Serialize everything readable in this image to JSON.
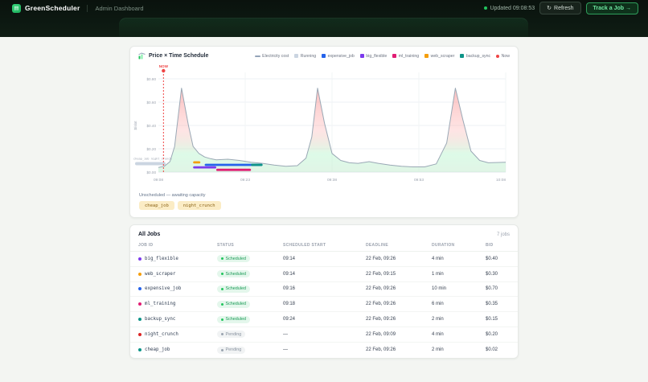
{
  "header": {
    "brand": "GreenScheduler",
    "nav_label": "Admin Dashboard",
    "updated_label": "Updated 09:08:53",
    "refresh_icon": "↻",
    "refresh_label": "Refresh",
    "track_label": "Track a Job →"
  },
  "chart_card": {
    "title": "Price × Time Schedule",
    "legend": [
      {
        "label": "Electricity cost",
        "color": "#94a3b8",
        "type": "line"
      },
      {
        "label": "Running",
        "color": "#cbd5e1",
        "type": "square"
      },
      {
        "label": "expensive_job",
        "color": "#2563eb",
        "type": "square"
      },
      {
        "label": "big_flexible",
        "color": "#7c3aed",
        "type": "square"
      },
      {
        "label": "ml_training",
        "color": "#e11d74",
        "type": "square"
      },
      {
        "label": "web_scraper",
        "color": "#f59e0b",
        "type": "square"
      },
      {
        "label": "backup_sync",
        "color": "#0d9488",
        "type": "square"
      },
      {
        "label": "Now",
        "color": "#ef4444",
        "type": "dot"
      }
    ],
    "unscheduled_label": "Unscheduled — awaiting capacity",
    "unscheduled_jobs": [
      "cheap_job",
      "night_crunch"
    ]
  },
  "chart_data": {
    "type": "area",
    "title": "Price × Time Schedule",
    "ylabel": "$/slot",
    "x_ticks": [
      "09:08",
      "09:23",
      "09:38",
      "09:53",
      "10:08"
    ],
    "x_tick_minutes": [
      0,
      15,
      30,
      45,
      60
    ],
    "y_ticks": [
      "$0.00",
      "$0.20",
      "$0.40",
      "$0.60",
      "$0.80"
    ],
    "y_tick_values": [
      0,
      0.2,
      0.4,
      0.6,
      0.8
    ],
    "ylim": [
      0,
      0.88
    ],
    "x_range_minutes": [
      0,
      60
    ],
    "grid": true,
    "legend_position": "top-right",
    "now": {
      "label": "NOW",
      "minute": 0.88,
      "color": "#ef4444"
    },
    "electricity_cost": {
      "name": "Electricity cost",
      "color": "#9aa8b5",
      "points": [
        [
          0,
          0.04
        ],
        [
          1,
          0.05
        ],
        [
          2,
          0.09
        ],
        [
          2.8,
          0.22
        ],
        [
          4,
          0.72
        ],
        [
          5.2,
          0.4
        ],
        [
          6,
          0.22
        ],
        [
          7,
          0.16
        ],
        [
          8,
          0.13
        ],
        [
          9,
          0.115
        ],
        [
          10,
          0.105
        ],
        [
          12,
          0.11
        ],
        [
          14,
          0.1
        ],
        [
          16,
          0.085
        ],
        [
          18,
          0.075
        ],
        [
          20,
          0.06
        ],
        [
          22,
          0.05
        ],
        [
          24,
          0.055
        ],
        [
          25.5,
          0.12
        ],
        [
          26.5,
          0.3
        ],
        [
          27.5,
          0.72
        ],
        [
          28.7,
          0.42
        ],
        [
          30,
          0.16
        ],
        [
          31.5,
          0.1
        ],
        [
          33,
          0.08
        ],
        [
          34.5,
          0.075
        ],
        [
          36.4,
          0.09
        ],
        [
          38,
          0.075
        ],
        [
          40,
          0.06
        ],
        [
          42,
          0.05
        ],
        [
          44,
          0.045
        ],
        [
          46,
          0.045
        ],
        [
          48,
          0.07
        ],
        [
          49.8,
          0.25
        ],
        [
          51.3,
          0.72
        ],
        [
          52.6,
          0.45
        ],
        [
          54,
          0.18
        ],
        [
          55.5,
          0.1
        ],
        [
          57,
          0.08
        ],
        [
          60,
          0.085
        ]
      ]
    },
    "scheduled_bars": [
      {
        "job": "web_scraper",
        "start_minute": 6,
        "end_minute": 7,
        "lane": 0,
        "color": "#f59e0b"
      },
      {
        "job": "expensive_job",
        "start_minute": 8,
        "end_minute": 18,
        "lane": 1,
        "color": "#2563eb"
      },
      {
        "job": "backup_sync",
        "start_minute": 16,
        "end_minute": 18,
        "lane": 1,
        "color": "#0d9488"
      },
      {
        "job": "big_flexible",
        "start_minute": 6,
        "end_minute": 10,
        "lane": 2,
        "color": "#7c3aed"
      },
      {
        "job": "ml_training",
        "start_minute": 10,
        "end_minute": 16,
        "lane": 3,
        "color": "#e11d74"
      }
    ],
    "queued_at_now": {
      "labels": [
        "cheap_job",
        "night_crunch"
      ],
      "color": "#cbd5e1"
    }
  },
  "table_card": {
    "title": "All Jobs",
    "count_label": "7 jobs",
    "columns": [
      "JOB ID",
      "STATUS",
      "SCHEDULED START",
      "DEADLINE",
      "DURATION",
      "BID"
    ],
    "rows": [
      {
        "job_id": "big_flexible",
        "dot": "#7c3aed",
        "status": "Scheduled",
        "start": "09:14",
        "deadline": "22 Feb, 09:26",
        "duration": "4 min",
        "bid": "$0.40"
      },
      {
        "job_id": "web_scraper",
        "dot": "#f59e0b",
        "status": "Scheduled",
        "start": "09:14",
        "deadline": "22 Feb, 09:15",
        "duration": "1 min",
        "bid": "$0.30"
      },
      {
        "job_id": "expensive_job",
        "dot": "#2563eb",
        "status": "Scheduled",
        "start": "09:16",
        "deadline": "22 Feb, 09:26",
        "duration": "10 min",
        "bid": "$0.70"
      },
      {
        "job_id": "ml_training",
        "dot": "#e11d74",
        "status": "Scheduled",
        "start": "09:18",
        "deadline": "22 Feb, 09:26",
        "duration": "6 min",
        "bid": "$0.35"
      },
      {
        "job_id": "backup_sync",
        "dot": "#0d9488",
        "status": "Scheduled",
        "start": "09:24",
        "deadline": "22 Feb, 09:26",
        "duration": "2 min",
        "bid": "$0.15"
      },
      {
        "job_id": "night_crunch",
        "dot": "#dc2626",
        "status": "Pending",
        "start": "—",
        "deadline": "22 Feb, 09:09",
        "duration": "4 min",
        "bid": "$0.20"
      },
      {
        "job_id": "cheap_job",
        "dot": "#0d9488",
        "status": "Pending",
        "start": "—",
        "deadline": "22 Feb, 09:26",
        "duration": "2 min",
        "bid": "$0.02"
      }
    ]
  }
}
